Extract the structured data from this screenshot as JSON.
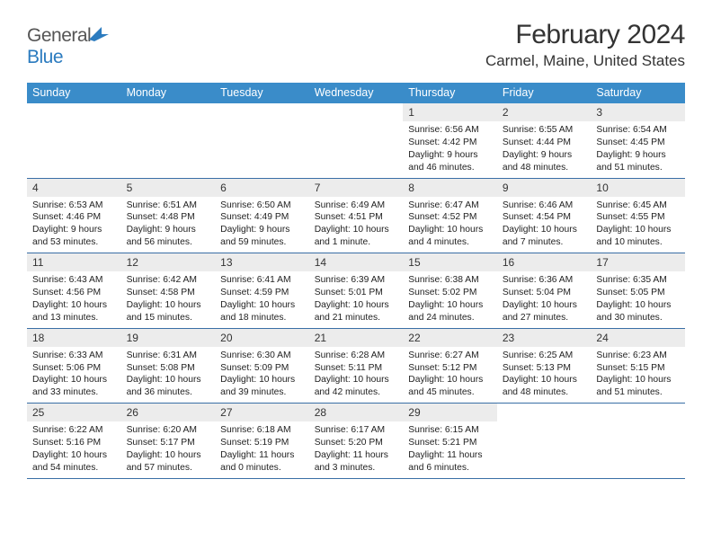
{
  "brand": {
    "name_a": "General",
    "name_b": "Blue"
  },
  "title": "February 2024",
  "location": "Carmel, Maine, United States",
  "colors": {
    "header_bg": "#3a8cc9",
    "header_text": "#ffffff",
    "date_bg": "#ececec",
    "week_border": "#3a6fa6",
    "text": "#222222"
  },
  "day_names": [
    "Sunday",
    "Monday",
    "Tuesday",
    "Wednesday",
    "Thursday",
    "Friday",
    "Saturday"
  ],
  "weeks": [
    [
      {
        "n": "",
        "sunrise": "",
        "sunset": "",
        "day": ""
      },
      {
        "n": "",
        "sunrise": "",
        "sunset": "",
        "day": ""
      },
      {
        "n": "",
        "sunrise": "",
        "sunset": "",
        "day": ""
      },
      {
        "n": "",
        "sunrise": "",
        "sunset": "",
        "day": ""
      },
      {
        "n": "1",
        "sunrise": "Sunrise: 6:56 AM",
        "sunset": "Sunset: 4:42 PM",
        "day": "Daylight: 9 hours and 46 minutes."
      },
      {
        "n": "2",
        "sunrise": "Sunrise: 6:55 AM",
        "sunset": "Sunset: 4:44 PM",
        "day": "Daylight: 9 hours and 48 minutes."
      },
      {
        "n": "3",
        "sunrise": "Sunrise: 6:54 AM",
        "sunset": "Sunset: 4:45 PM",
        "day": "Daylight: 9 hours and 51 minutes."
      }
    ],
    [
      {
        "n": "4",
        "sunrise": "Sunrise: 6:53 AM",
        "sunset": "Sunset: 4:46 PM",
        "day": "Daylight: 9 hours and 53 minutes."
      },
      {
        "n": "5",
        "sunrise": "Sunrise: 6:51 AM",
        "sunset": "Sunset: 4:48 PM",
        "day": "Daylight: 9 hours and 56 minutes."
      },
      {
        "n": "6",
        "sunrise": "Sunrise: 6:50 AM",
        "sunset": "Sunset: 4:49 PM",
        "day": "Daylight: 9 hours and 59 minutes."
      },
      {
        "n": "7",
        "sunrise": "Sunrise: 6:49 AM",
        "sunset": "Sunset: 4:51 PM",
        "day": "Daylight: 10 hours and 1 minute."
      },
      {
        "n": "8",
        "sunrise": "Sunrise: 6:47 AM",
        "sunset": "Sunset: 4:52 PM",
        "day": "Daylight: 10 hours and 4 minutes."
      },
      {
        "n": "9",
        "sunrise": "Sunrise: 6:46 AM",
        "sunset": "Sunset: 4:54 PM",
        "day": "Daylight: 10 hours and 7 minutes."
      },
      {
        "n": "10",
        "sunrise": "Sunrise: 6:45 AM",
        "sunset": "Sunset: 4:55 PM",
        "day": "Daylight: 10 hours and 10 minutes."
      }
    ],
    [
      {
        "n": "11",
        "sunrise": "Sunrise: 6:43 AM",
        "sunset": "Sunset: 4:56 PM",
        "day": "Daylight: 10 hours and 13 minutes."
      },
      {
        "n": "12",
        "sunrise": "Sunrise: 6:42 AM",
        "sunset": "Sunset: 4:58 PM",
        "day": "Daylight: 10 hours and 15 minutes."
      },
      {
        "n": "13",
        "sunrise": "Sunrise: 6:41 AM",
        "sunset": "Sunset: 4:59 PM",
        "day": "Daylight: 10 hours and 18 minutes."
      },
      {
        "n": "14",
        "sunrise": "Sunrise: 6:39 AM",
        "sunset": "Sunset: 5:01 PM",
        "day": "Daylight: 10 hours and 21 minutes."
      },
      {
        "n": "15",
        "sunrise": "Sunrise: 6:38 AM",
        "sunset": "Sunset: 5:02 PM",
        "day": "Daylight: 10 hours and 24 minutes."
      },
      {
        "n": "16",
        "sunrise": "Sunrise: 6:36 AM",
        "sunset": "Sunset: 5:04 PM",
        "day": "Daylight: 10 hours and 27 minutes."
      },
      {
        "n": "17",
        "sunrise": "Sunrise: 6:35 AM",
        "sunset": "Sunset: 5:05 PM",
        "day": "Daylight: 10 hours and 30 minutes."
      }
    ],
    [
      {
        "n": "18",
        "sunrise": "Sunrise: 6:33 AM",
        "sunset": "Sunset: 5:06 PM",
        "day": "Daylight: 10 hours and 33 minutes."
      },
      {
        "n": "19",
        "sunrise": "Sunrise: 6:31 AM",
        "sunset": "Sunset: 5:08 PM",
        "day": "Daylight: 10 hours and 36 minutes."
      },
      {
        "n": "20",
        "sunrise": "Sunrise: 6:30 AM",
        "sunset": "Sunset: 5:09 PM",
        "day": "Daylight: 10 hours and 39 minutes."
      },
      {
        "n": "21",
        "sunrise": "Sunrise: 6:28 AM",
        "sunset": "Sunset: 5:11 PM",
        "day": "Daylight: 10 hours and 42 minutes."
      },
      {
        "n": "22",
        "sunrise": "Sunrise: 6:27 AM",
        "sunset": "Sunset: 5:12 PM",
        "day": "Daylight: 10 hours and 45 minutes."
      },
      {
        "n": "23",
        "sunrise": "Sunrise: 6:25 AM",
        "sunset": "Sunset: 5:13 PM",
        "day": "Daylight: 10 hours and 48 minutes."
      },
      {
        "n": "24",
        "sunrise": "Sunrise: 6:23 AM",
        "sunset": "Sunset: 5:15 PM",
        "day": "Daylight: 10 hours and 51 minutes."
      }
    ],
    [
      {
        "n": "25",
        "sunrise": "Sunrise: 6:22 AM",
        "sunset": "Sunset: 5:16 PM",
        "day": "Daylight: 10 hours and 54 minutes."
      },
      {
        "n": "26",
        "sunrise": "Sunrise: 6:20 AM",
        "sunset": "Sunset: 5:17 PM",
        "day": "Daylight: 10 hours and 57 minutes."
      },
      {
        "n": "27",
        "sunrise": "Sunrise: 6:18 AM",
        "sunset": "Sunset: 5:19 PM",
        "day": "Daylight: 11 hours and 0 minutes."
      },
      {
        "n": "28",
        "sunrise": "Sunrise: 6:17 AM",
        "sunset": "Sunset: 5:20 PM",
        "day": "Daylight: 11 hours and 3 minutes."
      },
      {
        "n": "29",
        "sunrise": "Sunrise: 6:15 AM",
        "sunset": "Sunset: 5:21 PM",
        "day": "Daylight: 11 hours and 6 minutes."
      },
      {
        "n": "",
        "sunrise": "",
        "sunset": "",
        "day": ""
      },
      {
        "n": "",
        "sunrise": "",
        "sunset": "",
        "day": ""
      }
    ]
  ]
}
